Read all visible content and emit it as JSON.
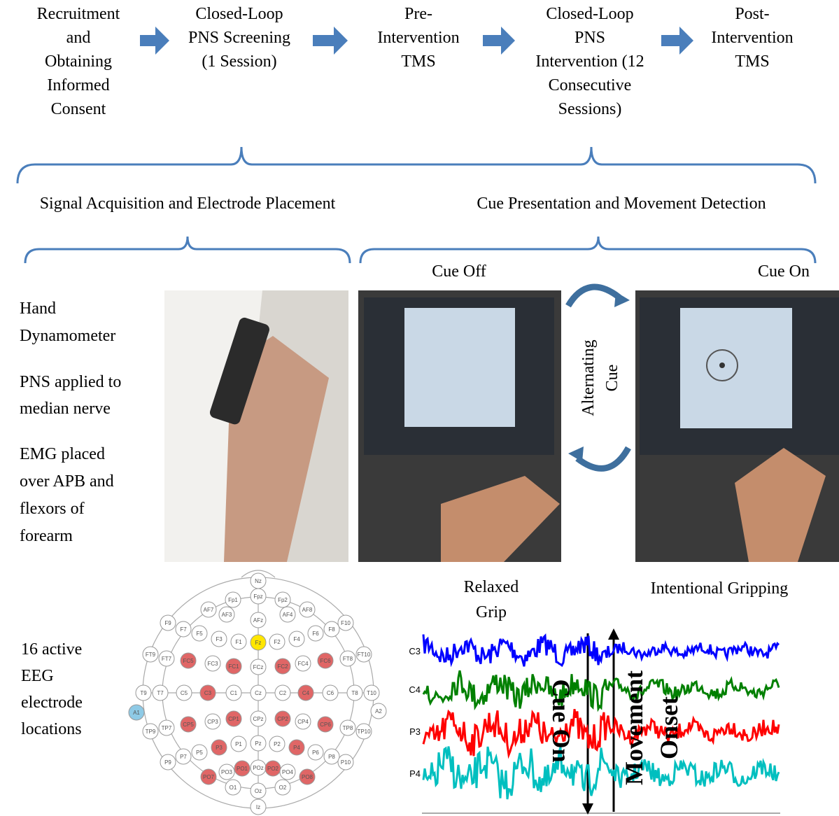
{
  "steps": [
    {
      "lines": [
        "Recruitment",
        "and",
        "Obtaining",
        "Informed",
        "Consent"
      ]
    },
    {
      "lines": [
        "Closed-Loop",
        "PNS Screening",
        "(1 Session)"
      ]
    },
    {
      "lines": [
        "Pre-",
        "Intervention",
        "TMS"
      ]
    },
    {
      "lines": [
        "Closed-Loop",
        "PNS",
        "Intervention (12",
        "Consecutive",
        "Sessions)"
      ]
    },
    {
      "lines": [
        "Post-",
        "Intervention",
        "TMS"
      ]
    }
  ],
  "sections": [
    "Signal Acquisition and Electrode Placement",
    "Cue Presentation and Movement Detection"
  ],
  "setup_notes": [
    {
      "lines": [
        "Hand",
        "Dynamometer"
      ]
    },
    {
      "lines": [
        "PNS applied to",
        "median nerve"
      ]
    },
    {
      "lines": [
        "EMG placed",
        "over APB and",
        "flexors of",
        "forearm"
      ]
    }
  ],
  "cue_off": "Cue Off",
  "cue_on": "Cue On",
  "alternating": [
    "Alternating",
    "Cue"
  ],
  "relaxed": [
    "Relaxed",
    "Grip"
  ],
  "gripping": "Intentional Gripping",
  "eeg_note": [
    "16 active",
    "EEG",
    "electrode",
    "locations"
  ],
  "electrodes": [
    {
      "label": "Nz"
    },
    {
      "label": "Fp1"
    },
    {
      "label": "Fpz"
    },
    {
      "label": "Fp2"
    },
    {
      "label": "AF7"
    },
    {
      "label": "AF3"
    },
    {
      "label": "AFz"
    },
    {
      "label": "AF4"
    },
    {
      "label": "AF8"
    },
    {
      "label": "F9"
    },
    {
      "label": "F7"
    },
    {
      "label": "F5"
    },
    {
      "label": "F3"
    },
    {
      "label": "F1"
    },
    {
      "label": "Fz",
      "color": "#ffe600"
    },
    {
      "label": "F2"
    },
    {
      "label": "F4"
    },
    {
      "label": "F6"
    },
    {
      "label": "F8"
    },
    {
      "label": "F10"
    },
    {
      "label": "FT9"
    },
    {
      "label": "FT7"
    },
    {
      "label": "FC5",
      "color": "#e06666"
    },
    {
      "label": "FC3"
    },
    {
      "label": "FC1",
      "color": "#e06666"
    },
    {
      "label": "FCz"
    },
    {
      "label": "FC2",
      "color": "#e06666"
    },
    {
      "label": "FC4"
    },
    {
      "label": "FC6",
      "color": "#e06666"
    },
    {
      "label": "FT8"
    },
    {
      "label": "FT10"
    },
    {
      "label": "T9"
    },
    {
      "label": "T7"
    },
    {
      "label": "C5"
    },
    {
      "label": "C3",
      "color": "#e06666"
    },
    {
      "label": "C1"
    },
    {
      "label": "Cz"
    },
    {
      "label": "C2"
    },
    {
      "label": "C4",
      "color": "#e06666"
    },
    {
      "label": "C6"
    },
    {
      "label": "T8"
    },
    {
      "label": "T10"
    },
    {
      "label": "A1",
      "color": "#8ecae6"
    },
    {
      "label": "A2"
    },
    {
      "label": "TP9"
    },
    {
      "label": "TP7"
    },
    {
      "label": "CP5",
      "color": "#e06666"
    },
    {
      "label": "CP3"
    },
    {
      "label": "CP1",
      "color": "#e06666"
    },
    {
      "label": "CPz"
    },
    {
      "label": "CP2",
      "color": "#e06666"
    },
    {
      "label": "CP4"
    },
    {
      "label": "CP6",
      "color": "#e06666"
    },
    {
      "label": "TP8"
    },
    {
      "label": "TP10"
    },
    {
      "label": "P9"
    },
    {
      "label": "P7"
    },
    {
      "label": "P5"
    },
    {
      "label": "P3",
      "color": "#e06666"
    },
    {
      "label": "P1"
    },
    {
      "label": "Pz"
    },
    {
      "label": "P2"
    },
    {
      "label": "P4",
      "color": "#e06666"
    },
    {
      "label": "P6"
    },
    {
      "label": "P8"
    },
    {
      "label": "P10"
    },
    {
      "label": "PO7",
      "color": "#e06666"
    },
    {
      "label": "PO3"
    },
    {
      "label": "PO1",
      "color": "#e06666"
    },
    {
      "label": "POz"
    },
    {
      "label": "PO2",
      "color": "#e06666"
    },
    {
      "label": "PO4"
    },
    {
      "label": "PO8",
      "color": "#e06666"
    },
    {
      "label": "O1"
    },
    {
      "label": "Oz"
    },
    {
      "label": "O2"
    },
    {
      "label": "Iz"
    }
  ],
  "traces": [
    {
      "name": "C3",
      "color": "#0000ff"
    },
    {
      "name": "C4",
      "color": "#008000"
    },
    {
      "name": "P3",
      "color": "#ff0000"
    },
    {
      "name": "P4",
      "color": "#00bfbf"
    }
  ],
  "cue_marker": "Cue On",
  "movement_marker": [
    "Movement",
    "Onset"
  ]
}
